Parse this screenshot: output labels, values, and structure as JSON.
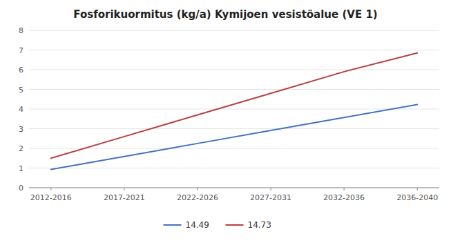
{
  "chart_data": {
    "type": "line",
    "title": "Fosforikuormitus (kg/a) Kymijoen vesistöalue (VE 1)",
    "categories": [
      "2012-2016",
      "2017-2021",
      "2022-2026",
      "2027-2031",
      "2032-2036",
      "2036-2040"
    ],
    "series": [
      {
        "name": "14.49",
        "color": "#4472C4",
        "values": [
          0.93,
          1.59,
          2.25,
          2.91,
          3.57,
          4.23
        ]
      },
      {
        "name": "14.73",
        "color": "#B94040",
        "values": [
          1.5,
          2.6,
          3.7,
          4.8,
          5.9,
          6.85
        ]
      }
    ],
    "ylim": [
      0,
      8
    ],
    "yticks": [
      0,
      1,
      2,
      3,
      4,
      5,
      6,
      7,
      8
    ],
    "grid": true,
    "legend": "bottom"
  }
}
